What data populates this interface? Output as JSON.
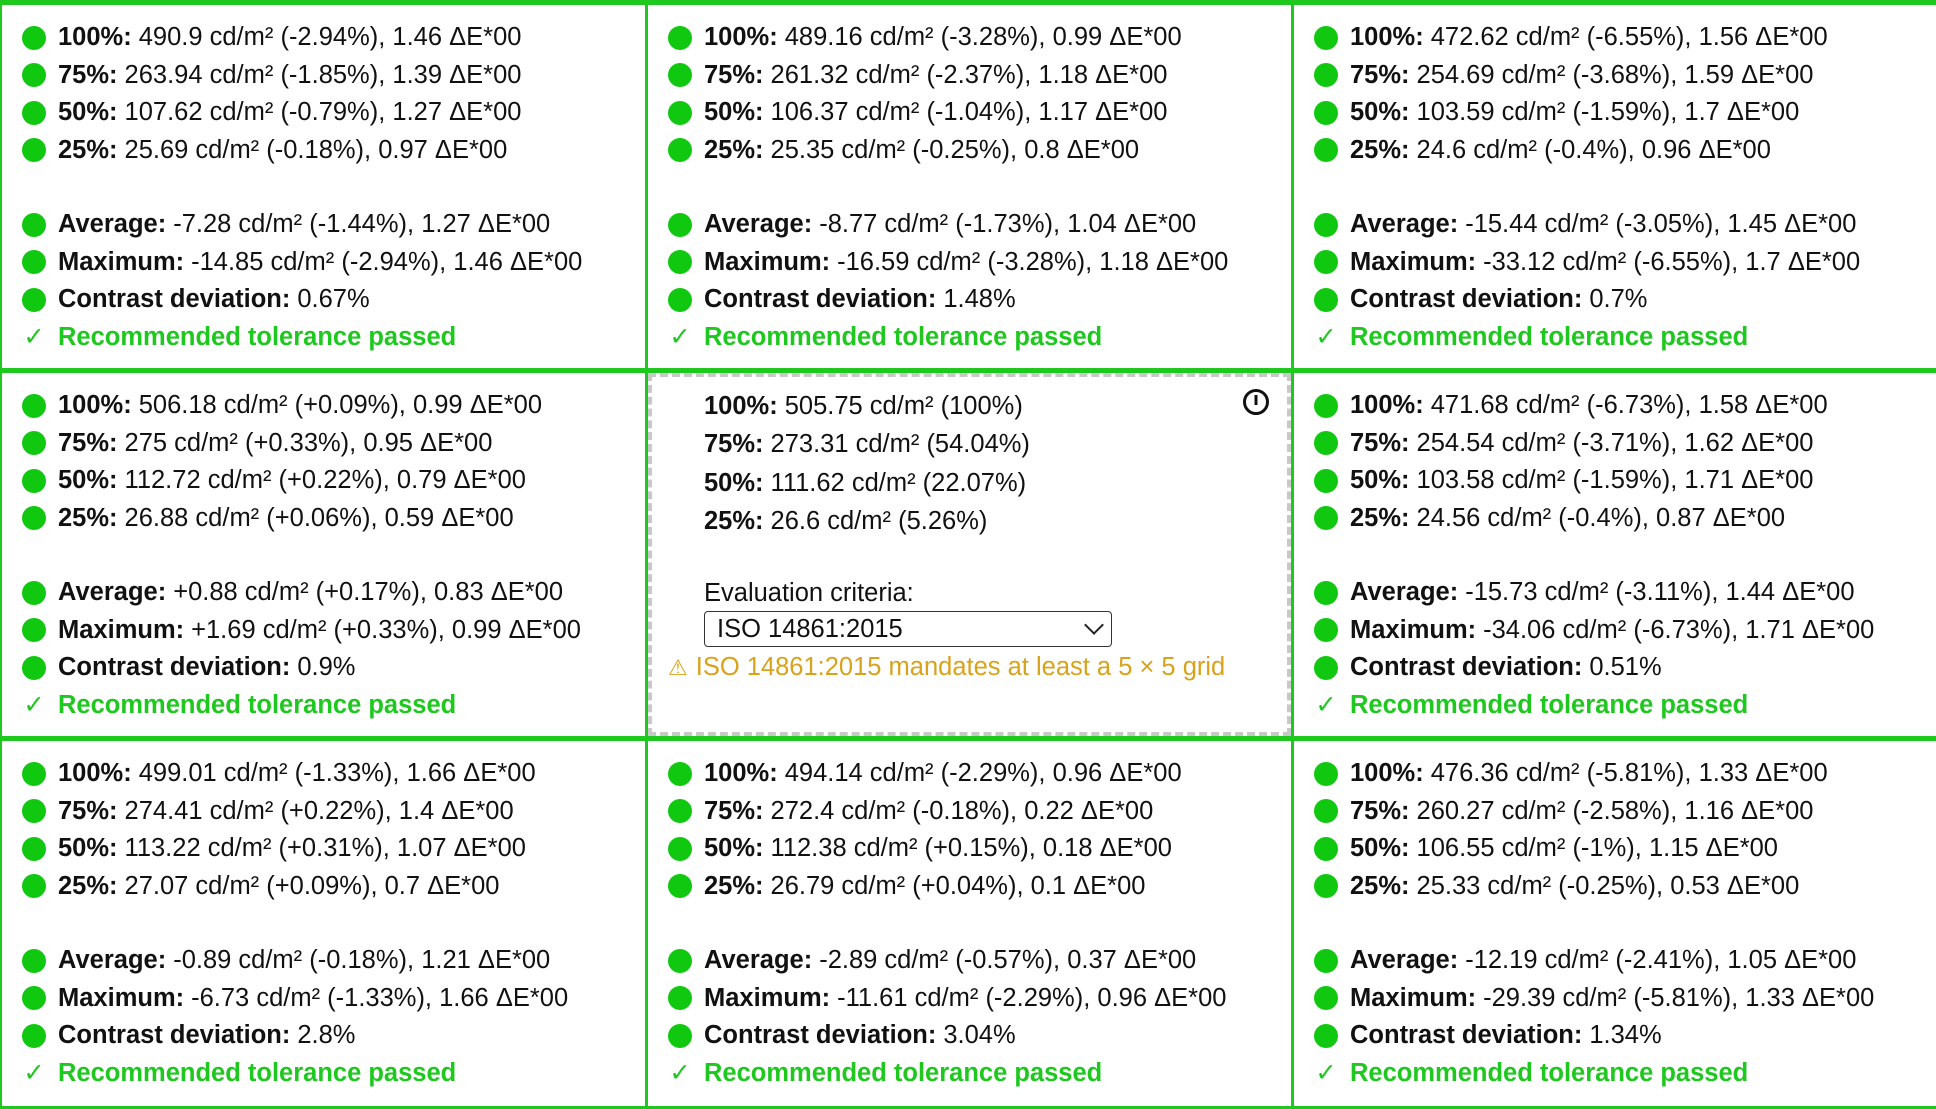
{
  "cells": [
    {
      "rows": [
        {
          "label": "100%:",
          "value": "490.9 cd/m² (-2.94%), 1.46 ΔE*00"
        },
        {
          "label": "75%:",
          "value": "263.94 cd/m² (-1.85%), 1.39 ΔE*00"
        },
        {
          "label": "50%:",
          "value": "107.62 cd/m² (-0.79%), 1.27 ΔE*00"
        },
        {
          "label": "25%:",
          "value": "25.69 cd/m² (-0.18%), 0.97 ΔE*00"
        }
      ],
      "summary": [
        {
          "label": "Average:",
          "value": "-7.28 cd/m² (-1.44%), 1.27 ΔE*00"
        },
        {
          "label": "Maximum:",
          "value": "-14.85 cd/m² (-2.94%), 1.46 ΔE*00"
        },
        {
          "label": "Contrast deviation:",
          "value": "0.67%"
        }
      ],
      "status": "Recommended tolerance passed"
    },
    {
      "rows": [
        {
          "label": "100%:",
          "value": "489.16 cd/m² (-3.28%), 0.99 ΔE*00"
        },
        {
          "label": "75%:",
          "value": "261.32 cd/m² (-2.37%), 1.18 ΔE*00"
        },
        {
          "label": "50%:",
          "value": "106.37 cd/m² (-1.04%), 1.17 ΔE*00"
        },
        {
          "label": "25%:",
          "value": "25.35 cd/m² (-0.25%), 0.8 ΔE*00"
        }
      ],
      "summary": [
        {
          "label": "Average:",
          "value": "-8.77 cd/m² (-1.73%), 1.04 ΔE*00"
        },
        {
          "label": "Maximum:",
          "value": "-16.59 cd/m² (-3.28%), 1.18 ΔE*00"
        },
        {
          "label": "Contrast deviation:",
          "value": "1.48%"
        }
      ],
      "status": "Recommended tolerance passed"
    },
    {
      "rows": [
        {
          "label": "100%:",
          "value": "472.62 cd/m² (-6.55%), 1.56 ΔE*00"
        },
        {
          "label": "75%:",
          "value": "254.69 cd/m² (-3.68%), 1.59 ΔE*00"
        },
        {
          "label": "50%:",
          "value": "103.59 cd/m² (-1.59%), 1.7 ΔE*00"
        },
        {
          "label": "25%:",
          "value": "24.6 cd/m² (-0.4%), 0.96 ΔE*00"
        }
      ],
      "summary": [
        {
          "label": "Average:",
          "value": "-15.44 cd/m² (-3.05%), 1.45 ΔE*00"
        },
        {
          "label": "Maximum:",
          "value": "-33.12 cd/m² (-6.55%), 1.7 ΔE*00"
        },
        {
          "label": "Contrast deviation:",
          "value": "0.7%"
        }
      ],
      "status": "Recommended tolerance passed"
    },
    {
      "rows": [
        {
          "label": "100%:",
          "value": "506.18 cd/m² (+0.09%), 0.99 ΔE*00"
        },
        {
          "label": "75%:",
          "value": "275 cd/m² (+0.33%), 0.95 ΔE*00"
        },
        {
          "label": "50%:",
          "value": "112.72 cd/m² (+0.22%), 0.79 ΔE*00"
        },
        {
          "label": "25%:",
          "value": "26.88 cd/m² (+0.06%), 0.59 ΔE*00"
        }
      ],
      "summary": [
        {
          "label": "Average:",
          "value": "+0.88 cd/m² (+0.17%), 0.83 ΔE*00"
        },
        {
          "label": "Maximum:",
          "value": "+1.69 cd/m² (+0.33%), 0.99 ΔE*00"
        },
        {
          "label": "Contrast deviation:",
          "value": "0.9%"
        }
      ],
      "status": "Recommended tolerance passed"
    },
    {
      "reference": true,
      "rows": [
        {
          "label": "100%:",
          "value": "505.75 cd/m² (100%)"
        },
        {
          "label": "75%:",
          "value": "273.31 cd/m² (54.04%)"
        },
        {
          "label": "50%:",
          "value": "111.62 cd/m² (22.07%)"
        },
        {
          "label": "25%:",
          "value": "26.6 cd/m² (5.26%)"
        }
      ],
      "criteria_label": "Evaluation criteria:",
      "criteria_value": "ISO 14861:2015",
      "warning": "ISO 14861:2015 mandates at least a 5 × 5 grid",
      "icon": "power-icon"
    },
    {
      "rows": [
        {
          "label": "100%:",
          "value": "471.68 cd/m² (-6.73%), 1.58 ΔE*00"
        },
        {
          "label": "75%:",
          "value": "254.54 cd/m² (-3.71%), 1.62 ΔE*00"
        },
        {
          "label": "50%:",
          "value": "103.58 cd/m² (-1.59%), 1.71 ΔE*00"
        },
        {
          "label": "25%:",
          "value": "24.56 cd/m² (-0.4%), 0.87 ΔE*00"
        }
      ],
      "summary": [
        {
          "label": "Average:",
          "value": "-15.73 cd/m² (-3.11%), 1.44 ΔE*00"
        },
        {
          "label": "Maximum:",
          "value": "-34.06 cd/m² (-6.73%), 1.71 ΔE*00"
        },
        {
          "label": "Contrast deviation:",
          "value": "0.51%"
        }
      ],
      "status": "Recommended tolerance passed"
    },
    {
      "rows": [
        {
          "label": "100%:",
          "value": "499.01 cd/m² (-1.33%), 1.66 ΔE*00"
        },
        {
          "label": "75%:",
          "value": "274.41 cd/m² (+0.22%), 1.4 ΔE*00"
        },
        {
          "label": "50%:",
          "value": "113.22 cd/m² (+0.31%), 1.07 ΔE*00"
        },
        {
          "label": "25%:",
          "value": "27.07 cd/m² (+0.09%), 0.7 ΔE*00"
        }
      ],
      "summary": [
        {
          "label": "Average:",
          "value": "-0.89 cd/m² (-0.18%), 1.21 ΔE*00"
        },
        {
          "label": "Maximum:",
          "value": "-6.73 cd/m² (-1.33%), 1.66 ΔE*00"
        },
        {
          "label": "Contrast deviation:",
          "value": "2.8%"
        }
      ],
      "status": "Recommended tolerance passed"
    },
    {
      "rows": [
        {
          "label": "100%:",
          "value": "494.14 cd/m² (-2.29%), 0.96 ΔE*00"
        },
        {
          "label": "75%:",
          "value": "272.4 cd/m² (-0.18%), 0.22 ΔE*00"
        },
        {
          "label": "50%:",
          "value": "112.38 cd/m² (+0.15%), 0.18 ΔE*00"
        },
        {
          "label": "25%:",
          "value": "26.79 cd/m² (+0.04%), 0.1 ΔE*00"
        }
      ],
      "summary": [
        {
          "label": "Average:",
          "value": "-2.89 cd/m² (-0.57%), 0.37 ΔE*00"
        },
        {
          "label": "Maximum:",
          "value": "-11.61 cd/m² (-2.29%), 0.96 ΔE*00"
        },
        {
          "label": "Contrast deviation:",
          "value": "3.04%"
        }
      ],
      "status": "Recommended tolerance passed"
    },
    {
      "rows": [
        {
          "label": "100%:",
          "value": "476.36 cd/m² (-5.81%), 1.33 ΔE*00"
        },
        {
          "label": "75%:",
          "value": "260.27 cd/m² (-2.58%), 1.16 ΔE*00"
        },
        {
          "label": "50%:",
          "value": "106.55 cd/m² (-1%), 1.15 ΔE*00"
        },
        {
          "label": "25%:",
          "value": "25.33 cd/m² (-0.25%), 0.53 ΔE*00"
        }
      ],
      "summary": [
        {
          "label": "Average:",
          "value": "-12.19 cd/m² (-2.41%), 1.05 ΔE*00"
        },
        {
          "label": "Maximum:",
          "value": "-29.39 cd/m² (-5.81%), 1.33 ΔE*00"
        },
        {
          "label": "Contrast deviation:",
          "value": "1.34%"
        }
      ],
      "status": "Recommended tolerance passed"
    }
  ],
  "colors": {
    "pass_green": "#1ec81e",
    "dot_green": "#10c810",
    "warning_amber": "#d9a21b"
  }
}
